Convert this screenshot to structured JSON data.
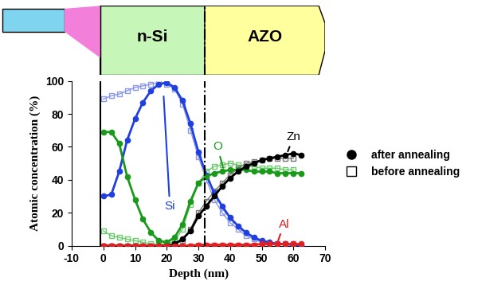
{
  "chart_data": {
    "type": "line",
    "x_label": "Depth (nm)",
    "y_label": "Atomic concentration (%)",
    "xlim": [
      -10,
      70
    ],
    "xticks": [
      -10,
      0,
      10,
      20,
      30,
      40,
      50,
      60,
      70
    ],
    "ylim": [
      0,
      100
    ],
    "yticks": [
      0,
      20,
      40,
      60,
      80,
      100
    ],
    "grid": false,
    "legend": "center left",
    "legend_entries": [
      {
        "label": "after annealing",
        "marker": "circle",
        "filled": true
      },
      {
        "label": "before annealing",
        "marker": "square",
        "filled": false
      }
    ],
    "regions": [
      {
        "label": "n-Si",
        "from": -1,
        "to": 32,
        "color": "#c6f7b9"
      },
      {
        "label": "AZO",
        "from": 32,
        "to": 70,
        "color": "#ffff9e"
      }
    ],
    "boundaries": [
      {
        "x": -1,
        "line_style": "solid"
      },
      {
        "x": 32,
        "line_style": "dashdot"
      }
    ],
    "annotations": [
      {
        "text": "Si",
        "color": "#1f3fe0"
      },
      {
        "text": "O",
        "color": "#1a9a1a"
      },
      {
        "text": "Zn",
        "color": "#000000"
      },
      {
        "text": "Al",
        "color": "#e02020"
      }
    ],
    "series": [
      {
        "name": "Si",
        "group": "after annealing",
        "color": "#1f3fe0",
        "marker": "circle",
        "line_style": "solid",
        "x": [
          0,
          2.5,
          5,
          7.5,
          10,
          12.5,
          15,
          17.5,
          20,
          22.5,
          25,
          27.5,
          30,
          32.5,
          35,
          37.5,
          40,
          42.5,
          45,
          47.5,
          50,
          52.5,
          55,
          57.5,
          60,
          62.5
        ],
        "values": [
          30,
          31,
          45,
          64,
          77,
          87,
          94,
          98,
          99,
          96,
          88,
          74,
          57,
          43,
          32,
          24,
          17,
          12,
          8,
          5,
          3,
          2,
          1,
          1,
          0.5,
          0.5
        ]
      },
      {
        "name": "Si",
        "group": "before annealing",
        "color": "#8a98e8",
        "marker": "square",
        "line_style": "solid",
        "x": [
          0,
          2.5,
          5,
          7.5,
          10,
          12.5,
          15,
          17.5,
          20,
          22.5,
          25,
          27.5,
          30,
          32.5,
          35,
          37.5,
          40,
          42.5,
          45,
          47.5,
          50,
          52.5,
          55,
          57.5,
          60
        ],
        "values": [
          89,
          91,
          92,
          94,
          96,
          97,
          98,
          99,
          98,
          95,
          86,
          70,
          54,
          40,
          28,
          20,
          14,
          10,
          6,
          4,
          2,
          1,
          1,
          0.5,
          0.5
        ]
      },
      {
        "name": "O",
        "group": "after annealing",
        "color": "#1a9a1a",
        "marker": "circle",
        "line_style": "solid",
        "x": [
          0,
          2.5,
          5,
          7.5,
          10,
          12.5,
          15,
          17.5,
          20,
          22.5,
          25,
          27.5,
          30,
          32.5,
          35,
          37.5,
          40,
          42.5,
          45,
          47.5,
          50,
          52.5,
          55,
          57.5,
          60,
          62.5
        ],
        "values": [
          69,
          69,
          62,
          42,
          28,
          16,
          8,
          3,
          2,
          5,
          13,
          27,
          38,
          42,
          44,
          45,
          46,
          46,
          46,
          45,
          45,
          45,
          44,
          44,
          44,
          44
        ]
      },
      {
        "name": "O",
        "group": "before annealing",
        "color": "#6cc86c",
        "marker": "square",
        "line_style": "solid",
        "x": [
          0,
          2.5,
          5,
          7.5,
          10,
          12.5,
          15,
          17.5,
          20,
          22.5,
          25,
          27.5,
          30,
          32.5,
          35,
          37.5,
          40,
          42.5,
          45,
          47.5,
          50,
          52.5,
          55,
          57.5,
          60
        ],
        "values": [
          9,
          6,
          5,
          4,
          3,
          2,
          1,
          1,
          1,
          3,
          10,
          25,
          38,
          45,
          48,
          49,
          50,
          49,
          48,
          48,
          47,
          47,
          47,
          46,
          46
        ]
      },
      {
        "name": "Zn",
        "group": "after annealing",
        "color": "#000000",
        "marker": "circle",
        "line_style": "solid",
        "x": [
          0,
          2.5,
          5,
          7.5,
          10,
          12.5,
          15,
          17.5,
          20,
          22.5,
          25,
          27.5,
          30,
          32.5,
          35,
          37.5,
          40,
          42.5,
          45,
          47.5,
          50,
          52.5,
          55,
          57.5,
          60,
          62.5
        ],
        "values": [
          0,
          0,
          0,
          0,
          0,
          0,
          0,
          0,
          0,
          1,
          4,
          9,
          18,
          24,
          30,
          36,
          41,
          45,
          48,
          50,
          52,
          53,
          54,
          55,
          56,
          55
        ]
      },
      {
        "name": "Zn",
        "group": "before annealing",
        "color": "#777777",
        "marker": "square",
        "line_style": "solid",
        "x": [
          0,
          2.5,
          5,
          7.5,
          10,
          12.5,
          15,
          17.5,
          20,
          22.5,
          25,
          27.5,
          30,
          32.5,
          35,
          37.5,
          40,
          42.5,
          45,
          47.5,
          50,
          52.5,
          55,
          57.5,
          60
        ],
        "values": [
          0,
          0,
          0,
          0,
          0,
          0,
          0,
          0,
          0,
          1,
          3,
          10,
          20,
          27,
          33,
          38,
          43,
          47,
          50,
          51,
          52,
          53,
          53,
          53,
          53
        ]
      },
      {
        "name": "Al",
        "group": "after annealing",
        "color": "#e02020",
        "marker": "circle",
        "line_style": "solid",
        "x": [
          0,
          2.5,
          5,
          7.5,
          10,
          12.5,
          15,
          17.5,
          20,
          22.5,
          25,
          27.5,
          30,
          32.5,
          35,
          37.5,
          40,
          42.5,
          45,
          47.5,
          50,
          52.5,
          55,
          57.5,
          60,
          62.5
        ],
        "values": [
          0,
          0,
          0,
          0,
          0,
          0,
          0,
          0,
          0,
          0,
          0,
          0,
          0.5,
          0.5,
          0.5,
          0.5,
          0.5,
          0.5,
          0.5,
          0.5,
          1,
          1,
          1,
          1,
          1,
          1
        ]
      },
      {
        "name": "Al",
        "group": "before annealing",
        "color": "#e87878",
        "marker": "square",
        "line_style": "solid",
        "x": [
          0,
          2.5,
          5,
          7.5,
          10,
          12.5,
          15,
          17.5,
          20,
          22.5,
          25,
          27.5,
          30,
          32.5,
          35,
          37.5,
          40,
          42.5,
          45,
          47.5,
          50,
          52.5,
          55,
          57.5,
          60
        ],
        "values": [
          0,
          0,
          0,
          0,
          0,
          0,
          0,
          0,
          0,
          0,
          0,
          0,
          0.5,
          0.5,
          0.5,
          0.5,
          0.5,
          0.5,
          0.5,
          0.5,
          1,
          1,
          1,
          1,
          1
        ]
      }
    ]
  }
}
